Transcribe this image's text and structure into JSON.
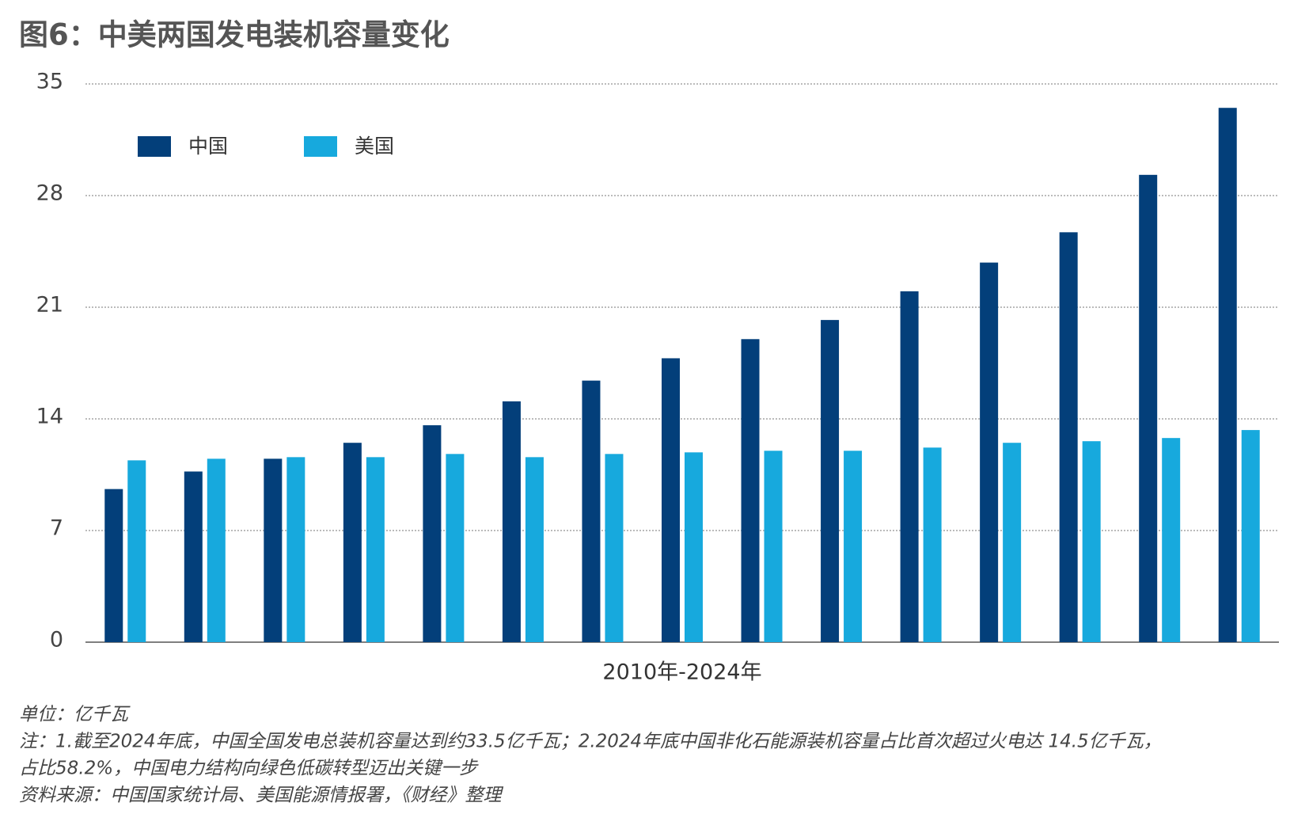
{
  "chart_data": {
    "type": "bar",
    "title": "图6：中美两国发电装机容量变化",
    "xlabel": "2010年-2024年",
    "categories": [
      null,
      null,
      null,
      null,
      null,
      null,
      null,
      null,
      null,
      null,
      null,
      null,
      null,
      null,
      null
    ],
    "series": [
      {
        "name": "中国",
        "color": "#033f7a",
        "values": [
          9.6,
          10.7,
          11.5,
          12.5,
          13.6,
          15.1,
          16.4,
          17.8,
          19.0,
          20.2,
          22.0,
          23.8,
          25.7,
          29.3,
          33.5
        ]
      },
      {
        "name": "美国",
        "color": "#17a9dd",
        "values": [
          11.4,
          11.5,
          11.6,
          11.6,
          11.8,
          11.6,
          11.8,
          11.9,
          12.0,
          12.0,
          12.2,
          12.5,
          12.6,
          12.8,
          13.3
        ]
      }
    ],
    "ylim": [
      0,
      35
    ],
    "yticks": [
      0,
      7,
      14,
      21,
      28,
      35
    ],
    "grid": true,
    "notes": [
      "单位：亿千瓦",
      "注：1.截至2024年底，中国全国发电总装机容量达到约33.5亿千瓦；2.2024年底中国非化石能源装机容量占比首次超过火电达 14.5亿千瓦，",
      "占比58.2%，中国电力结构向绿色低碳转型迈出关键一步",
      "资料来源：中国国家统计局、美国能源情报署，《财经》整理"
    ]
  }
}
